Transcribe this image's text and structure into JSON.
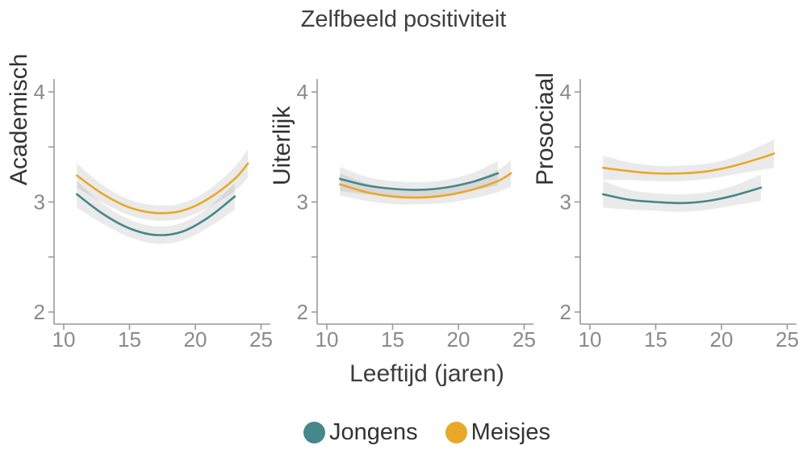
{
  "title": "Zelfbeeld positiviteit",
  "xlabel": "Leeftijd (jaren)",
  "legend": [
    {
      "label": "Jongens",
      "color": "#47868a"
    },
    {
      "label": "Meisjes",
      "color": "#e9a827"
    }
  ],
  "chart_data": {
    "type": "line",
    "title": "Zelfbeeld positiviteit",
    "xlabel": "Leeftijd (jaren)",
    "x_ticks": [
      10,
      15,
      20,
      25
    ],
    "y_ticks_major": [
      2,
      3,
      4
    ],
    "y_ticks_minor": [
      2.5,
      3.5
    ],
    "xlim": [
      9.3,
      25.7
    ],
    "ylim": [
      1.9,
      4.1
    ],
    "grid": "off",
    "legend_position": "bottom",
    "ribbon_color": "rgba(125,125,125,0.16)",
    "axis_color": "#999999",
    "tick_label_color": "#8a8a8a",
    "panels": [
      {
        "ylabel": "Academisch",
        "series": [
          {
            "name": "Jongens",
            "color": "#47868a",
            "x": [
              11,
              13,
              15,
              17,
              19,
              21,
              23
            ],
            "y": [
              3.07,
              2.89,
              2.76,
              2.7,
              2.73,
              2.86,
              3.05
            ],
            "band": [
              0.12,
              0.09,
              0.08,
              0.08,
              0.08,
              0.09,
              0.12
            ]
          },
          {
            "name": "Meisjes",
            "color": "#e9a827",
            "x": [
              11,
              13,
              15,
              17,
              19,
              21,
              23,
              24
            ],
            "y": [
              3.24,
              3.07,
              2.95,
              2.9,
              2.92,
              3.03,
              3.21,
              3.35
            ],
            "band": [
              0.11,
              0.08,
              0.07,
              0.07,
              0.07,
              0.08,
              0.11,
              0.13
            ]
          }
        ]
      },
      {
        "ylabel": "Uiterlijk",
        "series": [
          {
            "name": "Jongens",
            "color": "#47868a",
            "x": [
              11,
              13,
              15,
              17,
              19,
              21,
              23
            ],
            "y": [
              3.21,
              3.15,
              3.12,
              3.11,
              3.13,
              3.18,
              3.26
            ],
            "band": [
              0.11,
              0.08,
              0.07,
              0.07,
              0.07,
              0.08,
              0.11
            ]
          },
          {
            "name": "Meisjes",
            "color": "#e9a827",
            "x": [
              11,
              13,
              15,
              17,
              19,
              21,
              23,
              24
            ],
            "y": [
              3.16,
              3.09,
              3.05,
              3.04,
              3.06,
              3.11,
              3.19,
              3.26
            ],
            "band": [
              0.1,
              0.08,
              0.07,
              0.06,
              0.07,
              0.08,
              0.1,
              0.12
            ]
          }
        ]
      },
      {
        "ylabel": "Prosociaal",
        "series": [
          {
            "name": "Jongens",
            "color": "#47868a",
            "x": [
              11,
              13,
              15,
              17,
              19,
              21,
              23
            ],
            "y": [
              3.07,
              3.02,
              3.0,
              2.99,
              3.01,
              3.06,
              3.13
            ],
            "band": [
              0.12,
              0.09,
              0.08,
              0.08,
              0.08,
              0.09,
              0.12
            ]
          },
          {
            "name": "Meisjes",
            "color": "#e9a827",
            "x": [
              11,
              13,
              15,
              17,
              19,
              21,
              23,
              24
            ],
            "y": [
              3.31,
              3.28,
              3.26,
              3.26,
              3.28,
              3.33,
              3.4,
              3.44
            ],
            "band": [
              0.11,
              0.08,
              0.07,
              0.07,
              0.07,
              0.08,
              0.11,
              0.13
            ]
          }
        ]
      }
    ]
  }
}
